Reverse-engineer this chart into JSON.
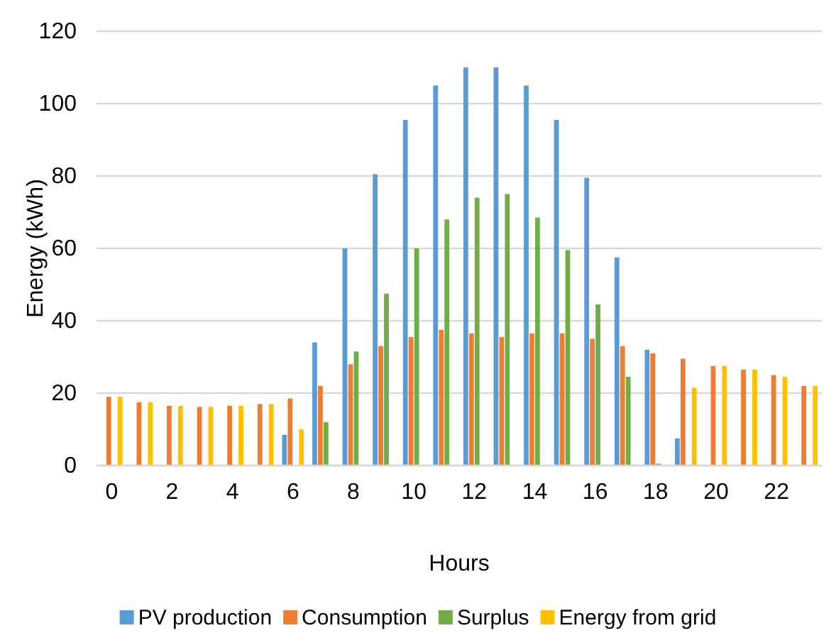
{
  "chart_data": {
    "type": "bar",
    "xlabel": "Hours",
    "ylabel": "Energy (kWh)",
    "categories": [
      "0",
      null,
      "2",
      null,
      "4",
      null,
      "6",
      null,
      "8",
      null,
      "10",
      null,
      "12",
      null,
      "14",
      null,
      "16",
      null,
      "18",
      null,
      "20",
      null,
      "22",
      null
    ],
    "series": [
      {
        "name": "PV production",
        "color": "#5b9bd5",
        "values": [
          0,
          0,
          0,
          0,
          0,
          0,
          8.5,
          34,
          60,
          80.5,
          95.5,
          105,
          110,
          110,
          105,
          95.5,
          79.5,
          57.5,
          32,
          7.5,
          0,
          0,
          0,
          0
        ]
      },
      {
        "name": "Consumption",
        "color": "#ed7d31",
        "values": [
          19,
          17.5,
          16.5,
          16.2,
          16.5,
          17,
          18.5,
          22,
          28,
          33,
          35.5,
          37.5,
          36.5,
          35.5,
          36.5,
          36.5,
          35,
          33,
          31,
          29.5,
          27.5,
          26.5,
          25,
          22
        ]
      },
      {
        "name": "Surplus",
        "color": "#70ad47",
        "values": [
          0,
          0,
          0,
          0,
          0,
          0,
          0,
          12,
          31.5,
          47.5,
          60,
          68,
          74,
          75,
          68.5,
          59.5,
          44.5,
          24.5,
          0.5,
          0,
          0,
          0,
          0,
          0
        ]
      },
      {
        "name": "Energy from grid",
        "color": "#ffc000",
        "values": [
          19,
          17.5,
          16.5,
          16.2,
          16.5,
          17,
          10,
          0,
          0,
          0,
          0,
          0,
          0,
          0,
          0,
          0,
          0,
          0,
          0,
          21.5,
          27.5,
          26.5,
          24.5,
          22
        ]
      }
    ],
    "ylim": [
      0,
      120
    ],
    "yticks": [
      0,
      20,
      40,
      60,
      80,
      100,
      120
    ],
    "grid": "y",
    "legend": "bottom"
  }
}
